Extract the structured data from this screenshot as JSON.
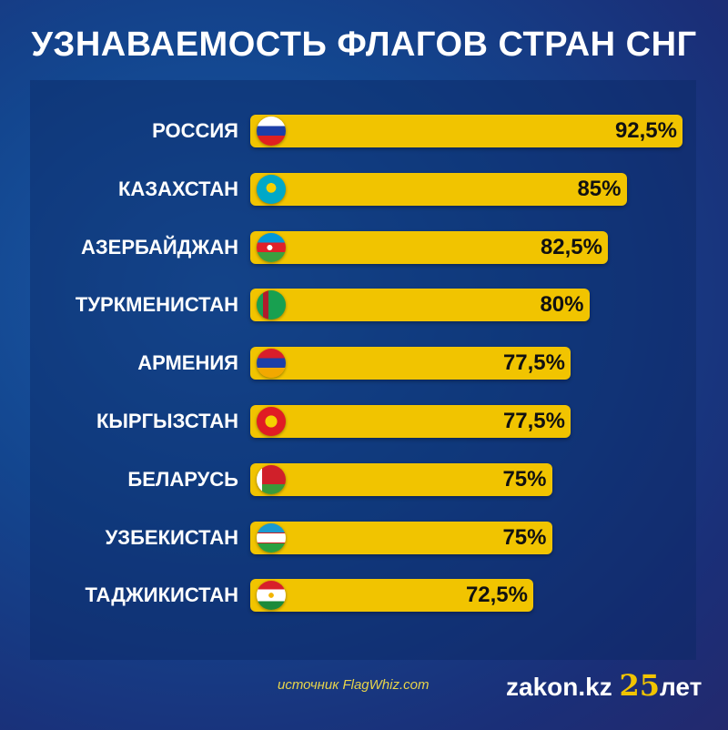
{
  "title": "УЗНАВАЕМОСТЬ ФЛАГОВ СТРАН СНГ",
  "source": "источник FlagWhiz.com",
  "logo": {
    "name": "zakon.kz",
    "number": "25",
    "suffix": "лет"
  },
  "colors": {
    "bar": "#f1c400",
    "background": "#13468f"
  },
  "chart_data": {
    "type": "bar",
    "orientation": "horizontal",
    "title": "УЗНАВАЕМОСТЬ ФЛАГОВ СТРАН СНГ",
    "categories": [
      "РОССИЯ",
      "КАЗАХСТАН",
      "АЗЕРБАЙДЖАН",
      "ТУРКМЕНИСТАН",
      "АРМЕНИЯ",
      "КЫРГЫЗСТАН",
      "БЕЛАРУСЬ",
      "УЗБЕКИСТАН",
      "ТАДЖИКИСТАН"
    ],
    "values": [
      92.5,
      85,
      82.5,
      80,
      77.5,
      77.5,
      75,
      75,
      72.5
    ],
    "labels": [
      "92,5%",
      "85%",
      "82,5%",
      "80%",
      "77,5%",
      "77,5%",
      "75%",
      "75%",
      "72,5%"
    ],
    "flags": [
      "russia",
      "kazakhstan",
      "azerbaijan",
      "turkmenistan",
      "armenia",
      "kyrgyzstan",
      "belarus",
      "uzbekistan",
      "tajikistan"
    ],
    "unit": "%"
  }
}
